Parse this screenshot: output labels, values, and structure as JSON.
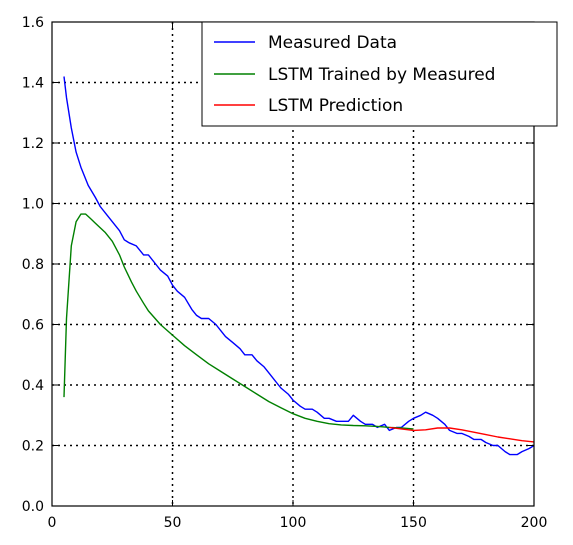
{
  "chart_data": {
    "type": "line",
    "xlim": [
      0,
      200
    ],
    "ylim": [
      0.0,
      1.6
    ],
    "x_ticks": [
      0,
      50,
      100,
      150,
      200
    ],
    "y_ticks": [
      0.0,
      0.2,
      0.4,
      0.6,
      0.8,
      1.0,
      1.2,
      1.4,
      1.6
    ],
    "x_tick_labels": [
      "0",
      "50",
      "100",
      "150",
      "200"
    ],
    "y_tick_labels": [
      "0.0",
      "0.2",
      "0.4",
      "0.6",
      "0.8",
      "1.0",
      "1.2",
      "1.4",
      "1.6"
    ],
    "grid": true,
    "grid_style": "dotted",
    "legend_position": "top-right",
    "series": [
      {
        "name": "Measured Data",
        "color": "#0000ff",
        "x": [
          5,
          6,
          8,
          10,
          12,
          15,
          18,
          20,
          23,
          25,
          28,
          30,
          32,
          35,
          38,
          40,
          43,
          45,
          48,
          50,
          52,
          55,
          58,
          60,
          62,
          65,
          68,
          70,
          72,
          75,
          78,
          80,
          83,
          85,
          88,
          90,
          93,
          95,
          98,
          100,
          103,
          105,
          108,
          110,
          113,
          115,
          118,
          120,
          123,
          125,
          128,
          130,
          133,
          135,
          138,
          140,
          143,
          145,
          148,
          150,
          153,
          155,
          158,
          160,
          163,
          165,
          168,
          170,
          173,
          175,
          178,
          180,
          183,
          185,
          188,
          190,
          193,
          195,
          198,
          200
        ],
        "values": [
          1.42,
          1.35,
          1.25,
          1.17,
          1.12,
          1.06,
          1.02,
          0.99,
          0.96,
          0.94,
          0.91,
          0.88,
          0.87,
          0.86,
          0.83,
          0.83,
          0.8,
          0.78,
          0.76,
          0.73,
          0.71,
          0.69,
          0.65,
          0.63,
          0.62,
          0.62,
          0.6,
          0.58,
          0.56,
          0.54,
          0.52,
          0.5,
          0.5,
          0.48,
          0.46,
          0.44,
          0.41,
          0.39,
          0.37,
          0.35,
          0.33,
          0.32,
          0.32,
          0.31,
          0.29,
          0.29,
          0.28,
          0.28,
          0.28,
          0.3,
          0.28,
          0.27,
          0.27,
          0.26,
          0.27,
          0.25,
          0.26,
          0.26,
          0.28,
          0.29,
          0.3,
          0.31,
          0.3,
          0.29,
          0.27,
          0.25,
          0.24,
          0.24,
          0.23,
          0.22,
          0.22,
          0.21,
          0.2,
          0.2,
          0.18,
          0.17,
          0.17,
          0.18,
          0.19,
          0.2
        ]
      },
      {
        "name": "LSTM Trained by Measured",
        "color": "#008000",
        "x": [
          5,
          6,
          8,
          10,
          12,
          14,
          16,
          18,
          20,
          22,
          25,
          28,
          30,
          33,
          35,
          38,
          40,
          45,
          50,
          55,
          60,
          65,
          70,
          75,
          80,
          85,
          90,
          95,
          100,
          105,
          110,
          115,
          120,
          125,
          130,
          135,
          140,
          145,
          150
        ],
        "values": [
          0.36,
          0.62,
          0.86,
          0.94,
          0.965,
          0.965,
          0.95,
          0.935,
          0.92,
          0.905,
          0.875,
          0.83,
          0.79,
          0.74,
          0.71,
          0.67,
          0.645,
          0.6,
          0.565,
          0.53,
          0.5,
          0.47,
          0.445,
          0.42,
          0.395,
          0.37,
          0.345,
          0.325,
          0.305,
          0.29,
          0.28,
          0.272,
          0.268,
          0.266,
          0.265,
          0.263,
          0.26,
          0.258,
          0.255
        ]
      },
      {
        "name": "LSTM Prediction",
        "color": "#ff0000",
        "x": [
          140,
          145,
          150,
          155,
          160,
          165,
          170,
          175,
          180,
          185,
          190,
          195,
          200
        ],
        "values": [
          0.26,
          0.255,
          0.25,
          0.252,
          0.258,
          0.258,
          0.252,
          0.244,
          0.236,
          0.228,
          0.222,
          0.216,
          0.212
        ]
      }
    ]
  }
}
